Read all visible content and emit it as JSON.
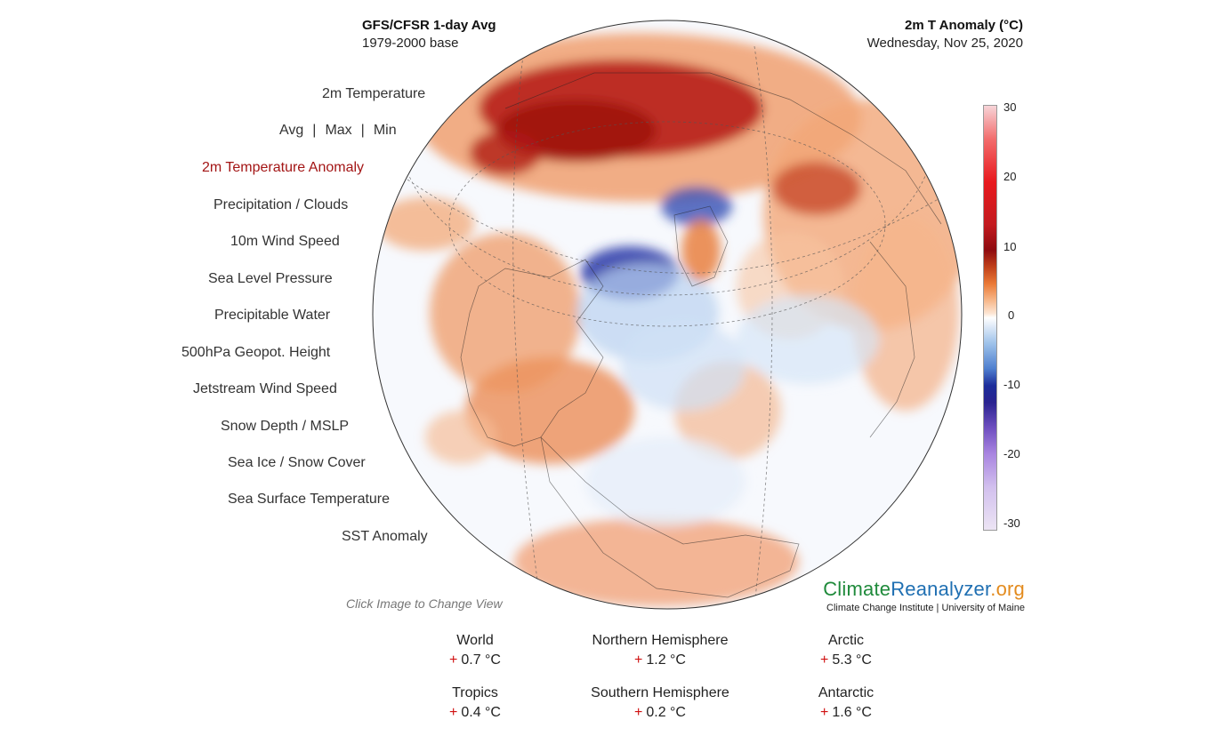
{
  "header": {
    "left_title": "GFS/CFSR 1-day Avg",
    "left_subtitle": "1979-2000 base",
    "right_title": "2m T Anomaly (°C)",
    "right_subtitle": "Wednesday, Nov 25, 2020"
  },
  "menu": {
    "temperature": "2m Temperature",
    "avg": "Avg",
    "max": "Max",
    "min": "Min",
    "separator": "|",
    "items": [
      "2m Temperature Anomaly",
      "Precipitation / Clouds",
      "10m Wind Speed",
      "Sea Level Pressure",
      "Precipitable Water",
      "500hPa Geopot. Height",
      "Jetstream Wind Speed",
      "Snow Depth / MSLP",
      "Sea Ice / Snow Cover",
      "Sea Surface Temperature",
      "SST Anomaly"
    ],
    "active": "2m Temperature Anomaly"
  },
  "colorbar": {
    "ticks": [
      "30",
      "20",
      "10",
      "0",
      "-10",
      "-20",
      "-30"
    ]
  },
  "click_hint": "Click Image to Change View",
  "brand": {
    "part1": "Climate",
    "part2": "Reanalyzer",
    "part3": ".org",
    "subtitle": "Climate Change Institute | University of Maine"
  },
  "stats": {
    "plus_sign": "+",
    "world": {
      "label": "World",
      "value": "0.7 °C"
    },
    "northern": {
      "label": "Northern Hemisphere",
      "value": "1.2 °C"
    },
    "arctic": {
      "label": "Arctic",
      "value": "5.3 °C"
    },
    "tropics": {
      "label": "Tropics",
      "value": "0.4 °C"
    },
    "southern": {
      "label": "Southern Hemisphere",
      "value": "0.2 °C"
    },
    "antarctic": {
      "label": "Antarctic",
      "value": "1.6 °C"
    }
  },
  "colors": {
    "active_menu": "#a31515",
    "warm_strong": "#a0100f",
    "warm": "#ee8a4a",
    "cold": "#2a3aa8",
    "plus": "#d01010"
  }
}
